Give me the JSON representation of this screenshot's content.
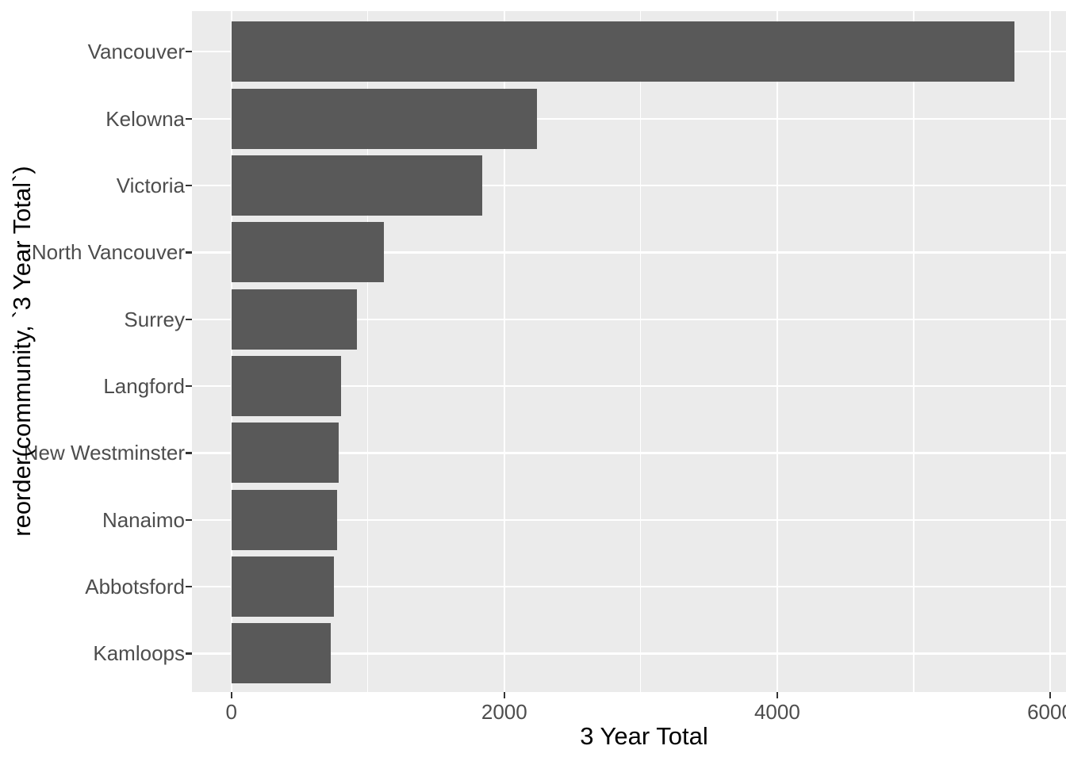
{
  "chart_data": {
    "type": "bar",
    "orientation": "horizontal",
    "title": "",
    "xlabel": "3 Year Total",
    "ylabel": "reorder(community, `3 Year Total`)",
    "categories": [
      "Vancouver",
      "Kelowna",
      "Victoria",
      "North Vancouver",
      "Surrey",
      "Langford",
      "New Westminster",
      "Nanaimo",
      "Abbotsford",
      "Kamloops"
    ],
    "values": [
      5740,
      2240,
      1840,
      1120,
      920,
      805,
      788,
      775,
      752,
      727
    ],
    "x_tick_values": [
      0,
      2000,
      4000,
      6000
    ],
    "x_tick_labels": [
      "0",
      "2000",
      "4000",
      "6000"
    ],
    "x_minor_tick_values": [
      1000,
      3000,
      5000
    ],
    "xlim": [
      -290,
      6120
    ],
    "legend": "none",
    "grid": "white major and minor gridlines on gray panel",
    "colors": {
      "bar_fill": "#595959",
      "panel_background": "#EBEBEB",
      "gridline": "#FFFFFF",
      "tick_mark": "#333333",
      "tick_label_text": "#4D4D4D",
      "axis_title_text": "#000000",
      "figure_background": "#FFFFFF"
    }
  }
}
